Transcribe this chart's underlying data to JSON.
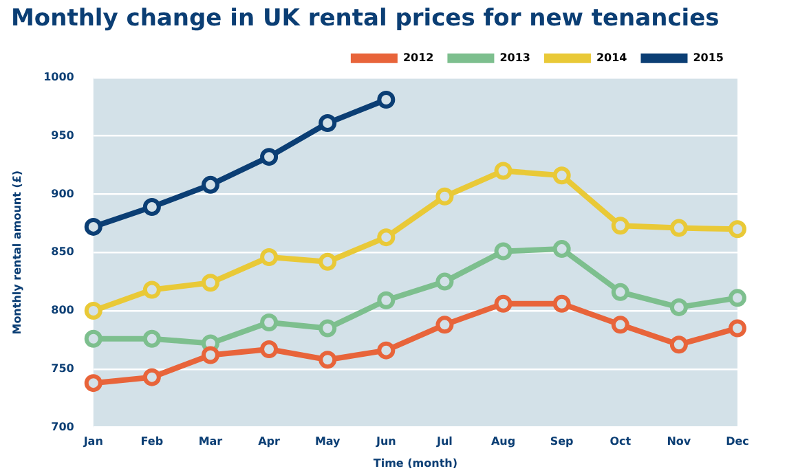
{
  "chart_data": {
    "type": "line",
    "title": "Monthly change in UK rental prices for new tenancies",
    "xlabel": "Time (month)",
    "ylabel": "Monthly rental amount (£)",
    "categories": [
      "Jan",
      "Feb",
      "Mar",
      "Apr",
      "May",
      "Jun",
      "Jul",
      "Aug",
      "Sep",
      "Oct",
      "Nov",
      "Dec"
    ],
    "series": [
      {
        "name": "2012",
        "color": "#e8643a",
        "values": [
          738,
          743,
          762,
          767,
          758,
          766,
          788,
          806,
          806,
          788,
          771,
          785
        ]
      },
      {
        "name": "2013",
        "color": "#7dbf8e",
        "values": [
          776,
          776,
          772,
          790,
          785,
          809,
          825,
          851,
          853,
          816,
          803,
          811
        ]
      },
      {
        "name": "2014",
        "color": "#e9c937",
        "values": [
          800,
          818,
          824,
          846,
          842,
          863,
          898,
          920,
          916,
          873,
          871,
          870
        ]
      },
      {
        "name": "2015",
        "color": "#0b3e74",
        "values": [
          872,
          889,
          908,
          932,
          961,
          981,
          null,
          null,
          null,
          null,
          null,
          null
        ]
      }
    ],
    "ylim": [
      700,
      1000
    ],
    "yticks": [
      700,
      750,
      800,
      850,
      900,
      950,
      1000
    ],
    "grid": "y",
    "legend": "top",
    "marker": "circle",
    "line_style": "solid"
  }
}
